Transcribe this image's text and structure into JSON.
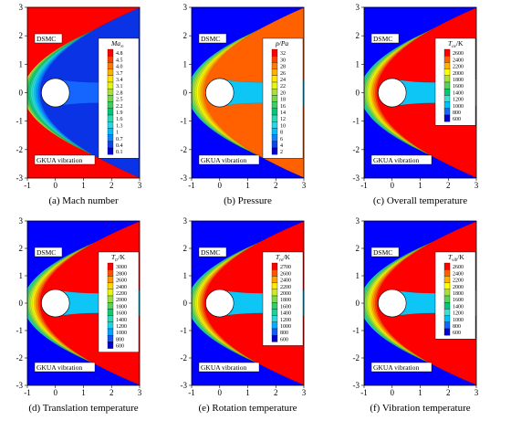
{
  "figure": {
    "top_label": "DSMC",
    "bottom_label": "GKUA vibration"
  },
  "axes": {
    "x_ticks": [
      "-1",
      "0",
      "1",
      "2",
      "3"
    ],
    "y_ticks": [
      "3",
      "2",
      "1",
      "0",
      "-1",
      "-2",
      "-3"
    ],
    "xlim": [
      -1,
      3
    ],
    "ylim": [
      -3,
      3
    ]
  },
  "colors": {
    "background": "#0000ff",
    "body": "#ffffff",
    "palette": [
      "#0000cc",
      "#1565ff",
      "#00bfff",
      "#40e0d0",
      "#00c878",
      "#5ad25a",
      "#a8e03c",
      "#ffff00",
      "#ffb000",
      "#ff6000",
      "#ff0000"
    ]
  },
  "chart_data": [
    {
      "type": "contour",
      "caption": "(a) Mach number",
      "colorbar_title": "Ma",
      "colorbar_title_sub": "∞",
      "levels": [
        4.8,
        4.5,
        4.0,
        3.7,
        3.4,
        3.1,
        2.8,
        2.5,
        2.2,
        1.9,
        1.6,
        1.3,
        1.0,
        0.7,
        0.4,
        0.1
      ],
      "level_labels": [
        "4.8",
        "4.5",
        "4.0",
        "3.7",
        "3.4",
        "3.1",
        "2.8",
        "2.5",
        "2.2",
        "1.9",
        "1.6",
        "1.3",
        "1",
        "0.7",
        "0.4",
        "0.1"
      ],
      "freestream_level": 4.8,
      "xlim": [
        -1,
        3
      ],
      "ylim": [
        -3,
        3
      ]
    },
    {
      "type": "contour",
      "caption": "(b) Pressure",
      "colorbar_title": "p/Pa",
      "colorbar_title_sub": "",
      "levels": [
        32,
        30,
        28,
        26,
        24,
        22,
        20,
        18,
        16,
        14,
        12,
        10,
        8,
        6,
        4,
        2
      ],
      "level_labels": [
        "32",
        "30",
        "28",
        "26",
        "24",
        "22",
        "20",
        "18",
        "16",
        "14",
        "12",
        "10",
        "8",
        "6",
        "4",
        "2"
      ],
      "freestream_level": 2,
      "xlim": [
        -1,
        3
      ],
      "ylim": [
        -3,
        3
      ]
    },
    {
      "type": "contour",
      "caption": "(c) Overall temperature",
      "colorbar_title": "T",
      "colorbar_title_sub": "ov",
      "colorbar_unit": "/K",
      "levels": [
        2600,
        2400,
        2200,
        2000,
        1800,
        1600,
        1400,
        1200,
        1000,
        800,
        600
      ],
      "level_labels": [
        "2600",
        "2400",
        "2200",
        "2000",
        "1800",
        "1600",
        "1400",
        "1200",
        "1000",
        "800",
        "600"
      ],
      "freestream_level": 600,
      "xlim": [
        -1,
        3
      ],
      "ylim": [
        -3,
        3
      ]
    },
    {
      "type": "contour",
      "caption": "(d) Translation temperature",
      "colorbar_title": "T",
      "colorbar_title_sub": "tr",
      "colorbar_unit": "/K",
      "levels": [
        3000,
        2800,
        2600,
        2400,
        2200,
        2000,
        1800,
        1600,
        1400,
        1200,
        1000,
        800,
        600
      ],
      "level_labels": [
        "3000",
        "2800",
        "2600",
        "2400",
        "2200",
        "2000",
        "1800",
        "1600",
        "1400",
        "1200",
        "1000",
        "800",
        "600"
      ],
      "freestream_level": 600,
      "xlim": [
        -1,
        3
      ],
      "ylim": [
        -3,
        3
      ]
    },
    {
      "type": "contour",
      "caption": "(e) Rotation temperature",
      "colorbar_title": "T",
      "colorbar_title_sub": "ro",
      "colorbar_unit": "/K",
      "levels": [
        2700,
        2600,
        2400,
        2200,
        2000,
        1800,
        1600,
        1400,
        1200,
        1000,
        800,
        600
      ],
      "level_labels": [
        "2700",
        "2600",
        "2400",
        "2200",
        "2000",
        "1800",
        "1600",
        "1400",
        "1200",
        "1000",
        "800",
        "600"
      ],
      "freestream_level": 600,
      "xlim": [
        -1,
        3
      ],
      "ylim": [
        -3,
        3
      ]
    },
    {
      "type": "contour",
      "caption": "(f) Vibration temperature",
      "colorbar_title": "T",
      "colorbar_title_sub": "vib",
      "colorbar_unit": "/K",
      "levels": [
        2600,
        2400,
        2200,
        2000,
        1800,
        1600,
        1400,
        1200,
        1000,
        800,
        600
      ],
      "level_labels": [
        "2600",
        "2400",
        "2200",
        "2000",
        "1800",
        "1600",
        "1400",
        "1200",
        "1000",
        "800",
        "600"
      ],
      "freestream_level": 600,
      "xlim": [
        -1,
        3
      ],
      "ylim": [
        -3,
        3
      ]
    }
  ]
}
